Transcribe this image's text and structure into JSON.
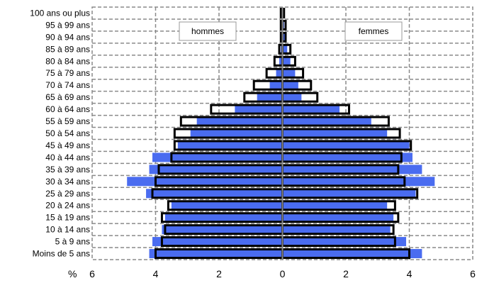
{
  "chart_data": {
    "type": "bar",
    "orientation": "horizontal-population-pyramid",
    "categories": [
      "100 ans ou plus",
      "95 à 99 ans",
      "90 à 94 ans",
      "85 à 89 ans",
      "80 à 84 ans",
      "75 à 79 ans",
      "70 à 74 ans",
      "65 à 69 ans",
      "60 à 64 ans",
      "55 à 59 ans",
      "50 à 54 ans",
      "45 à 49 ans",
      "40 à 44 ans",
      "35 à 39 ans",
      "30 à 34 ans",
      "25 à 29 ans",
      "20 à 24 ans",
      "15 à 19 ans",
      "10 à 14 ans",
      "5 à 9 ans",
      "Moins de 5 ans"
    ],
    "series": [
      {
        "name": "hommes",
        "side": "left",
        "filled": [
          0.0,
          0.0,
          0.02,
          0.05,
          0.1,
          0.2,
          0.4,
          0.8,
          1.5,
          2.7,
          2.9,
          3.3,
          4.1,
          4.2,
          4.9,
          4.3,
          3.5,
          3.7,
          3.8,
          4.1,
          4.2
        ],
        "outline": [
          0.05,
          0.05,
          0.05,
          0.1,
          0.25,
          0.5,
          0.9,
          1.2,
          2.25,
          3.2,
          3.4,
          3.4,
          3.5,
          3.9,
          4.0,
          4.1,
          3.6,
          3.8,
          3.7,
          3.8,
          4.0
        ]
      },
      {
        "name": "femmes",
        "side": "right",
        "filled": [
          0.0,
          0.05,
          0.1,
          0.15,
          0.25,
          0.4,
          0.5,
          0.6,
          1.8,
          2.8,
          3.3,
          4.0,
          4.1,
          4.4,
          4.8,
          4.2,
          3.3,
          3.5,
          3.4,
          3.9,
          4.4
        ],
        "outline": [
          0.05,
          0.1,
          0.1,
          0.25,
          0.4,
          0.65,
          0.9,
          1.1,
          2.1,
          3.35,
          3.7,
          4.05,
          3.75,
          3.65,
          3.85,
          4.25,
          3.55,
          3.65,
          3.5,
          3.55,
          4.0
        ]
      }
    ],
    "x_ticks": [
      6,
      4,
      2,
      0,
      2,
      4,
      6
    ],
    "xlim": [
      -6,
      6
    ],
    "unit_label": "%",
    "grid": true,
    "colors": {
      "filled": "#4a6cf0",
      "outline": "#000000",
      "grid": "#8a8a8a",
      "axis": "#8a8a8a"
    }
  }
}
